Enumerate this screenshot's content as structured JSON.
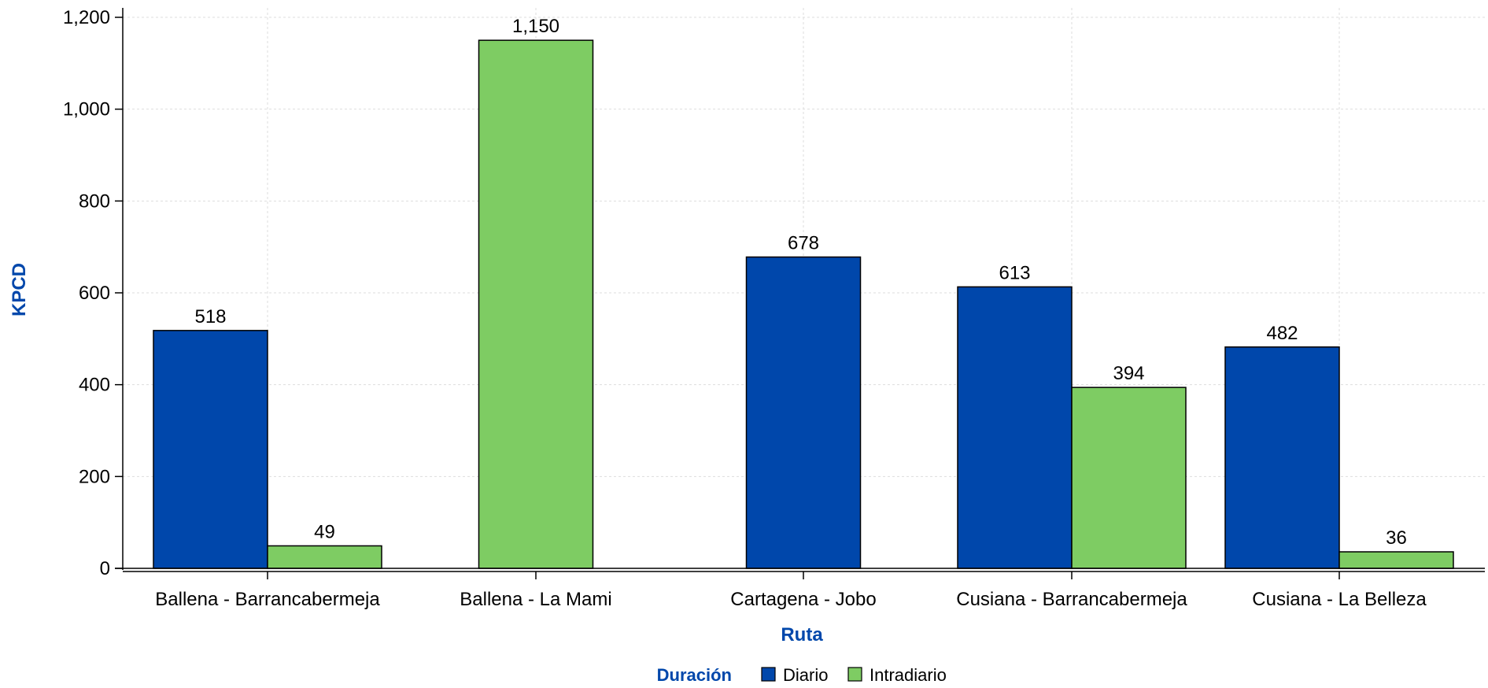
{
  "chart_data": {
    "type": "bar",
    "categories": [
      "Ballena - Barrancabermeja",
      "Ballena - La Mami",
      "Cartagena - Jobo",
      "Cusiana - Barrancabermeja",
      "Cusiana - La Belleza"
    ],
    "series": [
      {
        "name": "Diario",
        "color": "#0047AB",
        "values": [
          518,
          null,
          678,
          613,
          482
        ]
      },
      {
        "name": "Intradiario",
        "color": "#7ECC63",
        "values": [
          49,
          1150,
          null,
          394,
          36
        ]
      }
    ],
    "data_labels": [
      [
        "518",
        "",
        "678",
        "613",
        "482"
      ],
      [
        "49",
        "1,150",
        "",
        "394",
        "36"
      ]
    ],
    "xlabel": "Ruta",
    "ylabel": "KPCD",
    "ylim": [
      0,
      1200
    ],
    "yticks": [
      0,
      200,
      400,
      600,
      800,
      1000,
      1200
    ],
    "ytick_labels": [
      "0",
      "200",
      "400",
      "600",
      "800",
      "1,000",
      "1,200"
    ],
    "grid": true,
    "legend": {
      "title": "Duración",
      "placement": "bottom-center"
    },
    "title_color": "#0047AB"
  }
}
